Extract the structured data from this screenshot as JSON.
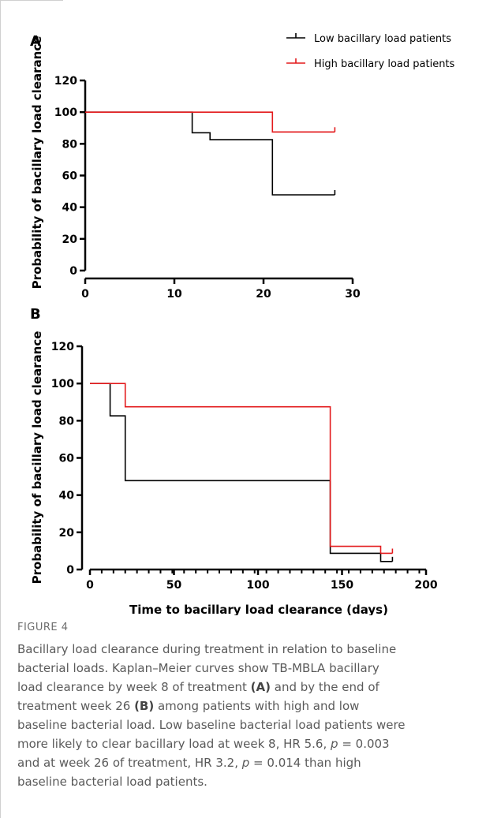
{
  "chart_data": [
    {
      "panel_label": "A",
      "type": "line",
      "step": true,
      "title": "",
      "xlabel": "",
      "ylabel": "Probability of bacillary load clearance",
      "xlim": [
        0,
        30
      ],
      "ylim": [
        0,
        120
      ],
      "xticks": [
        0,
        10,
        20,
        30
      ],
      "yticks": [
        0,
        20,
        40,
        60,
        80,
        100,
        120
      ],
      "legend_position": "top-right",
      "series": [
        {
          "name": "Low bacillary load patients",
          "color": "#000000",
          "points": [
            [
              0,
              100
            ],
            [
              12,
              100
            ],
            [
              12,
              87
            ],
            [
              14,
              87
            ],
            [
              14,
              82.6
            ],
            [
              21,
              82.6
            ],
            [
              21,
              47.8
            ],
            [
              28,
              47.8
            ]
          ],
          "censor": [
            [
              28,
              47.8
            ]
          ]
        },
        {
          "name": "High bacillary load patients",
          "color": "#e31a1c",
          "points": [
            [
              0,
              100
            ],
            [
              21,
              100
            ],
            [
              21,
              87.5
            ],
            [
              28,
              87.5
            ]
          ],
          "censor": [
            [
              28,
              87.5
            ]
          ]
        }
      ]
    },
    {
      "panel_label": "B",
      "type": "line",
      "step": true,
      "title": "",
      "xlabel": "Time to bacillary load clearance (days)",
      "ylabel": "Probability of bacillary load clearance",
      "xlim": [
        0,
        200
      ],
      "ylim": [
        0,
        120
      ],
      "xticks": [
        0,
        50,
        100,
        150,
        200
      ],
      "yticks": [
        0,
        20,
        40,
        60,
        80,
        100,
        120
      ],
      "x_minor_step": 7,
      "series": [
        {
          "name": "Low bacillary load patients",
          "color": "#000000",
          "points": [
            [
              0,
              100
            ],
            [
              12,
              100
            ],
            [
              12,
              82.6
            ],
            [
              21,
              82.6
            ],
            [
              21,
              47.8
            ],
            [
              143,
              47.8
            ],
            [
              143,
              8.7
            ],
            [
              173,
              8.7
            ],
            [
              173,
              4.3
            ],
            [
              180,
              4.3
            ]
          ],
          "censor": [
            [
              180,
              4.3
            ]
          ]
        },
        {
          "name": "High bacillary load patients",
          "color": "#e31a1c",
          "points": [
            [
              0,
              100
            ],
            [
              21,
              100
            ],
            [
              21,
              87.5
            ],
            [
              143,
              87.5
            ],
            [
              143,
              12.5
            ],
            [
              173,
              12.5
            ],
            [
              173,
              8.7
            ],
            [
              180,
              8.7
            ]
          ],
          "censor": [
            [
              180,
              8.7
            ]
          ]
        }
      ]
    }
  ],
  "caption": {
    "label": "FIGURE 4",
    "text": {
      "l1": "Bacillary load clearance during treatment in relation to baseline",
      "l2": "bacterial loads. Kaplan–Meier curves show TB-MBLA bacillary",
      "l3a": "load clearance by week 8 of treatment ",
      "l3b": "(A)",
      "l3c": " and by the end of",
      "l4a": "treatment week 26 ",
      "l4b": "(B)",
      "l4c": " among patients with high and low",
      "l5": "baseline bacterial load. Low baseline bacterial load patients were",
      "l6a": "more likely to clear bacillary load at week 8, HR 5.6, ",
      "l6p": "p",
      "l6b": " = 0.003",
      "l7a": "and at week 26 of treatment, HR 3.2, ",
      "l7p": "p",
      "l7b": " = 0.014 than high",
      "l8": "baseline bacterial load patients."
    }
  }
}
